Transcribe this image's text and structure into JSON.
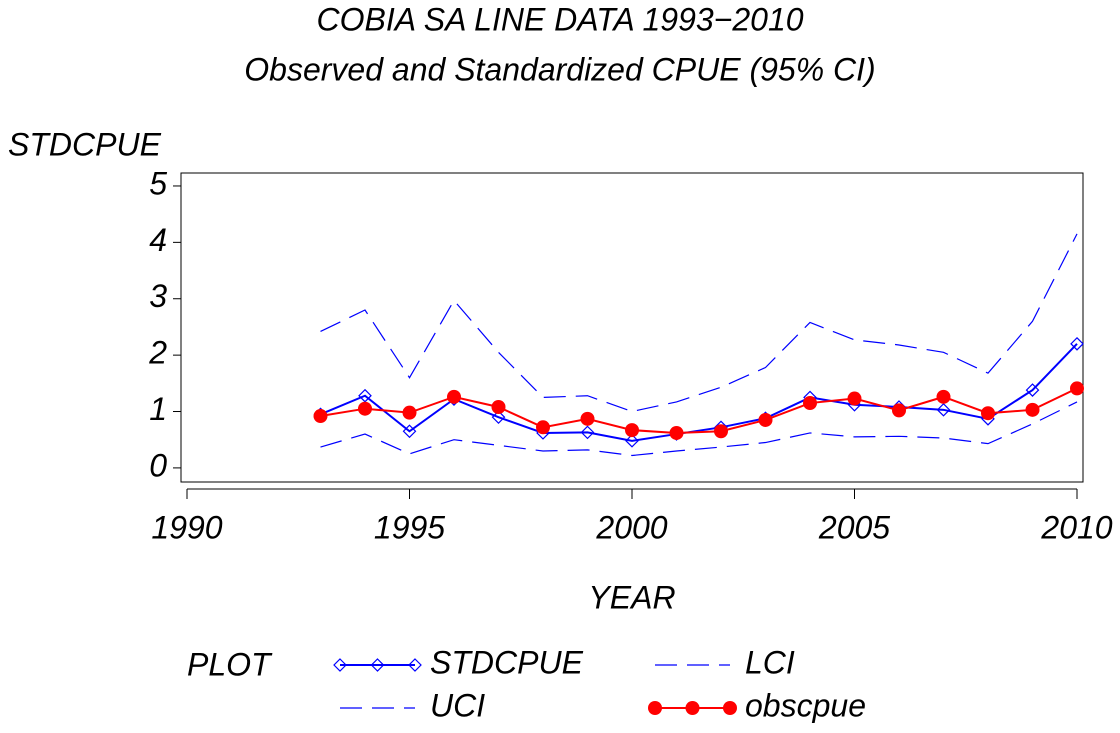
{
  "chart_data": {
    "type": "line",
    "title": "COBIA SA LINE DATA 1993−2010",
    "subtitle": "Observed and Standardized CPUE (95% CI)",
    "y_label": "STDCPUE",
    "x_label": "YEAR",
    "legend_title": "PLOT",
    "x": [
      1993,
      1994,
      1995,
      1996,
      1997,
      1998,
      1999,
      2000,
      2001,
      2002,
      2003,
      2004,
      2005,
      2006,
      2007,
      2008,
      2009,
      2010
    ],
    "series": [
      {
        "name": "STDCPUE",
        "color": "#0000ff",
        "marker": "diamond",
        "dashed": false,
        "values": [
          0.95,
          1.28,
          0.65,
          1.22,
          0.9,
          0.62,
          0.63,
          0.48,
          0.6,
          0.72,
          0.88,
          1.25,
          1.12,
          1.08,
          1.03,
          0.87,
          1.38,
          2.2
        ]
      },
      {
        "name": "UCI",
        "color": "#0000ff",
        "marker": "none",
        "dashed": true,
        "values": [
          2.42,
          2.8,
          1.6,
          2.97,
          2.05,
          1.25,
          1.28,
          1.0,
          1.17,
          1.43,
          1.78,
          2.58,
          2.27,
          2.18,
          2.05,
          1.68,
          2.6,
          4.15
        ]
      },
      {
        "name": "LCI",
        "color": "#0000ff",
        "marker": "none",
        "dashed": true,
        "values": [
          0.37,
          0.6,
          0.25,
          0.5,
          0.4,
          0.3,
          0.32,
          0.22,
          0.3,
          0.37,
          0.45,
          0.62,
          0.55,
          0.56,
          0.53,
          0.43,
          0.78,
          1.17
        ]
      },
      {
        "name": "obscpue",
        "color": "#ff0000",
        "marker": "circle",
        "dashed": false,
        "values": [
          0.92,
          1.05,
          0.98,
          1.26,
          1.08,
          0.72,
          0.87,
          0.67,
          0.62,
          0.65,
          0.85,
          1.15,
          1.23,
          1.02,
          1.26,
          0.97,
          1.03,
          1.41
        ]
      }
    ],
    "xlim": [
      1990,
      2010
    ],
    "xticks": [
      1990,
      1995,
      2000,
      2005,
      2010
    ],
    "ylim": [
      -0.25,
      5.23
    ],
    "yticks": [
      0,
      1,
      2,
      3,
      4,
      5
    ]
  }
}
